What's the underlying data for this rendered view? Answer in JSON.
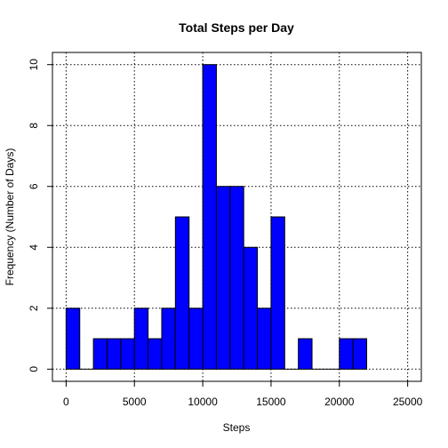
{
  "chart_data": {
    "type": "bar",
    "title": "Total Steps per Day",
    "xlabel": "Steps",
    "ylabel": "Frequency (Number of Days)",
    "bin_width": 1000,
    "bins": [
      {
        "from": 0,
        "to": 1000,
        "count": 2
      },
      {
        "from": 1000,
        "to": 2000,
        "count": 0
      },
      {
        "from": 2000,
        "to": 3000,
        "count": 1
      },
      {
        "from": 3000,
        "to": 4000,
        "count": 1
      },
      {
        "from": 4000,
        "to": 5000,
        "count": 1
      },
      {
        "from": 5000,
        "to": 6000,
        "count": 2
      },
      {
        "from": 6000,
        "to": 7000,
        "count": 1
      },
      {
        "from": 7000,
        "to": 8000,
        "count": 2
      },
      {
        "from": 8000,
        "to": 9000,
        "count": 5
      },
      {
        "from": 9000,
        "to": 10000,
        "count": 2
      },
      {
        "from": 10000,
        "to": 11000,
        "count": 10
      },
      {
        "from": 11000,
        "to": 12000,
        "count": 6
      },
      {
        "from": 12000,
        "to": 13000,
        "count": 6
      },
      {
        "from": 13000,
        "to": 14000,
        "count": 4
      },
      {
        "from": 14000,
        "to": 15000,
        "count": 2
      },
      {
        "from": 15000,
        "to": 16000,
        "count": 5
      },
      {
        "from": 16000,
        "to": 17000,
        "count": 0
      },
      {
        "from": 17000,
        "to": 18000,
        "count": 1
      },
      {
        "from": 18000,
        "to": 19000,
        "count": 0
      },
      {
        "from": 19000,
        "to": 20000,
        "count": 0
      },
      {
        "from": 20000,
        "to": 21000,
        "count": 1
      },
      {
        "from": 21000,
        "to": 22000,
        "count": 1
      }
    ],
    "xlim": [
      -1000,
      26000
    ],
    "ylim": [
      -0.4,
      10.4
    ],
    "xticks": [
      0,
      5000,
      10000,
      15000,
      20000,
      25000
    ],
    "yticks": [
      0,
      2,
      4,
      6,
      8,
      10
    ],
    "grid": true,
    "bar_color": "#0000ff",
    "bar_border": "#000000",
    "grid_color": "#000000"
  }
}
